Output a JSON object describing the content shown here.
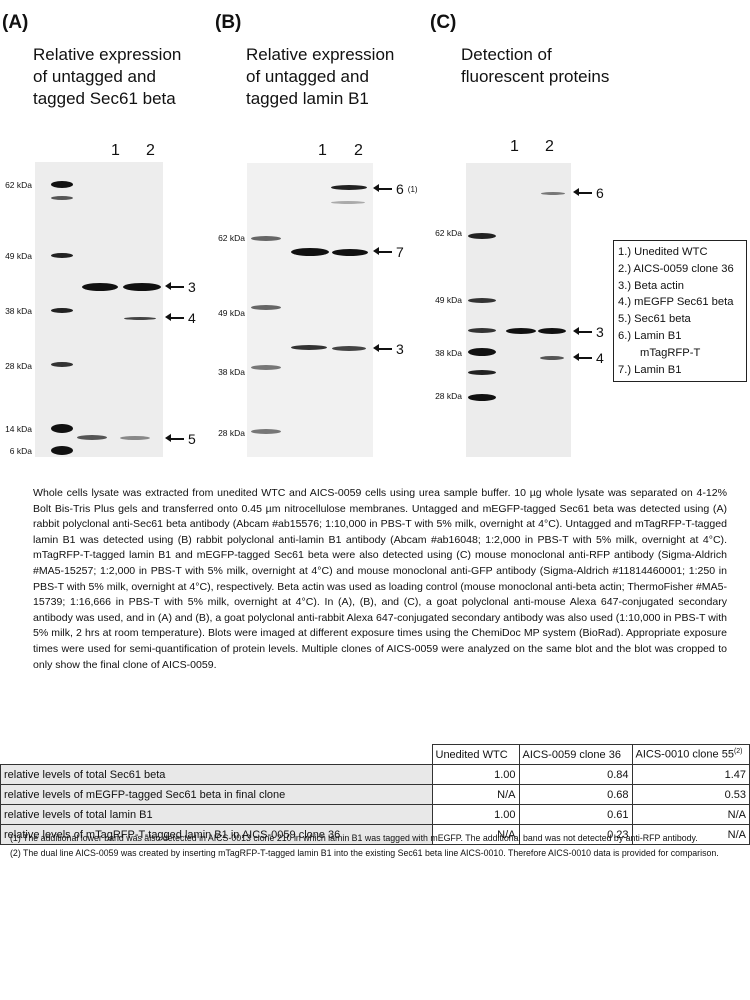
{
  "panels": [
    {
      "label": "(A)",
      "title": [
        "Relative expression",
        "of untagged and",
        "tagged Sec61 beta"
      ],
      "lanes": [
        "1",
        "2"
      ],
      "kda": [
        "62 kDa",
        "49 kDa",
        "38 kDa",
        "28 kDa",
        "14 kDa",
        "6 kDa"
      ],
      "arrows": [
        {
          "n": "3",
          "sup": ""
        },
        {
          "n": "4",
          "sup": ""
        },
        {
          "n": "5",
          "sup": ""
        }
      ]
    },
    {
      "label": "(B)",
      "title": [
        "Relative expression",
        "of untagged and",
        "tagged lamin B1"
      ],
      "lanes": [
        "1",
        "2"
      ],
      "kda": [
        "62 kDa",
        "49 kDa",
        "38 kDa",
        "28 kDa"
      ],
      "arrows": [
        {
          "n": "6",
          "sup": "(1)"
        },
        {
          "n": "7",
          "sup": ""
        },
        {
          "n": "3",
          "sup": ""
        }
      ]
    },
    {
      "label": "(C)",
      "title": [
        "Detection of",
        "fluorescent proteins"
      ],
      "lanes": [
        "1",
        "2"
      ],
      "kda": [
        "62 kDa",
        "49 kDa",
        "38 kDa",
        "28 kDa"
      ],
      "arrows": [
        {
          "n": "6",
          "sup": ""
        },
        {
          "n": "3",
          "sup": ""
        },
        {
          "n": "4",
          "sup": ""
        }
      ]
    }
  ],
  "legend": [
    "1.) Unedited WTC",
    "2.) AICS-0059 clone 36",
    "3.) Beta actin",
    "4.) mEGFP Sec61 beta",
    "5.) Sec61 beta",
    "6.) Lamin B1",
    "mTagRFP-T",
    "7.) Lamin B1"
  ],
  "description": "Whole cells lysate was extracted from unedited WTC and AICS-0059 cells using urea sample buffer. 10 µg whole lysate was separated on 4-12% Bolt Bis-Tris Plus gels and transferred onto 0.45 µm nitrocellulose membranes. Untagged and mEGFP-tagged Sec61 beta was detected using (A) rabbit polyclonal anti-Sec61 beta antibody (Abcam #ab15576; 1:10,000 in PBS-T with 5% milk, overnight at 4°C). Untagged and mTagRFP-T-tagged lamin B1 was detected using (B) rabbit polyclonal anti-lamin B1 antibody (Abcam #ab16048; 1:2,000 in PBS-T with 5% milk, overnight at 4°C). mTagRFP-T-tagged lamin B1 and mEGFP-tagged Sec61 beta were also detected using (C) mouse monoclonal anti-RFP antibody (Sigma-Aldrich #MA5-15257; 1:2,000 in PBS-T with 5% milk, overnight at 4°C) and mouse monoclonal anti-GFP antibody (Sigma-Aldrich #11814460001; 1:250 in PBS-T with 5% milk, overnight at 4°C), respectively. Beta actin was used as loading control (mouse monoclonal anti-beta actin; ThermoFisher #MA5-15739; 1:16,666 in PBS-T with 5% milk, overnight at 4°C). In (A), (B), and (C), a goat polyclonal anti-mouse Alexa 647-conjugated secondary antibody was used, and in (A) and (B), a goat polyclonal anti-rabbit Alexa 647-conjugated secondary antibody was also used (1:10,000 in PBS-T with 5% milk, 2 hrs at room temperature). Blots were imaged at different exposure times using the ChemiDoc MP system (BioRad). Appropriate exposure times were used for semi-quantification of protein levels. Multiple clones of AICS-0059 were analyzed on the same blot and the blot was cropped to only show the final clone of AICS-0059.",
  "table": {
    "headers": [
      "",
      "Unedited WTC",
      "AICS-0059 clone 36",
      "AICS-0010 clone 55"
    ],
    "header_sup": "(2)",
    "rows": [
      [
        "relative levels of total Sec61 beta",
        "1.00",
        "0.84",
        "1.47"
      ],
      [
        "relative levels of mEGFP-tagged Sec61 beta in final clone",
        "N/A",
        "0.68",
        "0.53"
      ],
      [
        "relative levels of total lamin B1",
        "1.00",
        "0.61",
        "N/A"
      ],
      [
        "relative levels of mTagRFP-T-tagged lamin B1 in AICS-0059 clone 36",
        "N/A",
        "0.23",
        "N/A"
      ]
    ]
  },
  "footnotes": [
    "(1) The additional lower band was also detected in AICS-0013 clone 210 in which lamin B1 was tagged with mEGFP. The additional band was not detected by anti-RFP antibody.",
    "(2) The dual line AICS-0059 was created by inserting mTagRFP-T-tagged lamin B1 into the existing Sec61 beta line AICS-0010. Therefore AICS-0010 data is provided for comparison."
  ]
}
